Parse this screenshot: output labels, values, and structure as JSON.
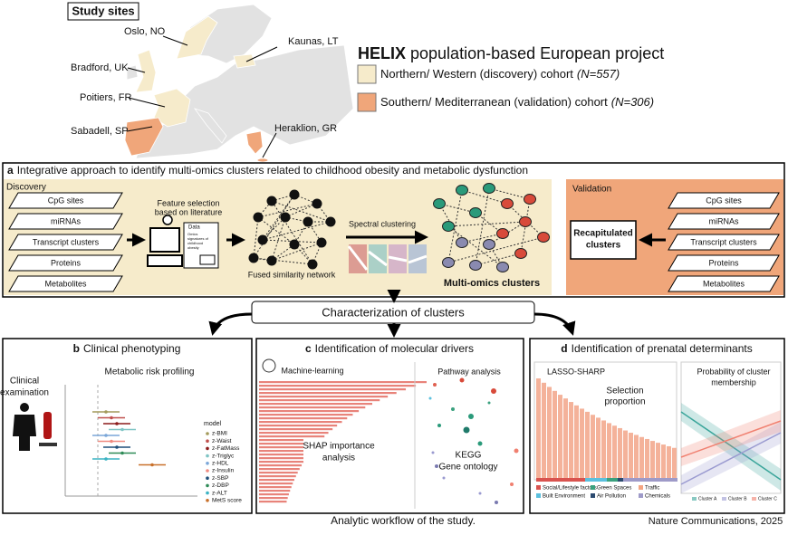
{
  "map": {
    "title": "Study sites",
    "sites": [
      "Oslo, NO",
      "Kaunas, LT",
      "Bradford, UK",
      "Poitiers, FR",
      "Sabadell, SP",
      "Heraklion, GR"
    ]
  },
  "legend": {
    "title_bold": "HELIX",
    "title_rest": "population-based European project",
    "items": [
      {
        "label": "Northern/ Western (discovery) cohort",
        "n": "(N=557)",
        "color": "#f6ebcb"
      },
      {
        "label": "Southern/ Mediterranean (validation) cohort",
        "n": "(N=306)",
        "color": "#f0a67a"
      }
    ]
  },
  "panel_a": {
    "letter": "a",
    "title": "Integrative approach to identify multi-omics clusters related to childhood obesity and metabolic dysfunction",
    "discovery": "Discovery",
    "validation": "Validation",
    "omics": [
      "CpG sites",
      "miRNAs",
      "Transcript clusters",
      "Proteins",
      "Metabolites"
    ],
    "feature_selection": [
      "Feature selection",
      "based on literature"
    ],
    "data_label": "Data",
    "doc_text": [
      "Omics",
      "signatures of",
      "childhood",
      "obesity"
    ],
    "fused": "Fused similarity network",
    "spectral": "Spectral clustering",
    "clusters": "Multi-omics clusters",
    "recap": [
      "Recapitulated",
      "clusters"
    ]
  },
  "characterization": "Characterization of clusters",
  "panel_b": {
    "letter": "b",
    "title": "Clinical phenotyping",
    "clinical": [
      "Clinical",
      "examination"
    ],
    "metabolic": "Metabolic risk profiling",
    "legend_title": "model",
    "models": [
      {
        "name": "z-BMI",
        "color": "#a39a5a"
      },
      {
        "name": "z-Waist",
        "color": "#c0504d"
      },
      {
        "name": "z-FatMass",
        "color": "#8b1a1a"
      },
      {
        "name": "z-Triglyc",
        "color": "#7fc4c4"
      },
      {
        "name": "z-HDL",
        "color": "#7aa6d8"
      },
      {
        "name": "z-Insulin",
        "color": "#f08a80"
      },
      {
        "name": "z-SBP",
        "color": "#1f4e79"
      },
      {
        "name": "z-DBP",
        "color": "#2e8b57"
      },
      {
        "name": "z-ALT",
        "color": "#3bb3c3"
      },
      {
        "name": "MetS score",
        "color": "#c8702a"
      }
    ]
  },
  "panel_c": {
    "letter": "c",
    "title": "Identification of molecular drivers",
    "ml": "Machine-learning",
    "shap": [
      "SHAP importance",
      "analysis"
    ],
    "pathway": "Pathway analysis",
    "kegg": [
      "KEGG",
      "Gene ontology"
    ]
  },
  "panel_d": {
    "letter": "d",
    "title": "Identification of prenatal determinants",
    "lasso": "LASSO-SHARP",
    "selection": [
      "Selection",
      "proportion"
    ],
    "probability": [
      "Probability of cluster",
      "membership"
    ],
    "categories": [
      {
        "label": "Social/Lifestyle factors",
        "color": "#d9534f"
      },
      {
        "label": "Green Spaces",
        "color": "#3aa17e"
      },
      {
        "label": "Traffic",
        "color": "#f4a582"
      },
      {
        "label": "Built Environment",
        "color": "#5bc0de"
      },
      {
        "label": "Air Pollution",
        "color": "#2b4a6f"
      },
      {
        "label": "Chemicals",
        "color": "#9e9ac8"
      }
    ],
    "clusters": [
      {
        "name": "Cluster A",
        "color": "#3aa59a"
      },
      {
        "name": "Cluster B",
        "color": "#9a9ad0"
      },
      {
        "name": "Cluster C",
        "color": "#f08070"
      }
    ]
  },
  "caption": "Analytic workflow of the study.",
  "source": "Nature Communications, 2025"
}
